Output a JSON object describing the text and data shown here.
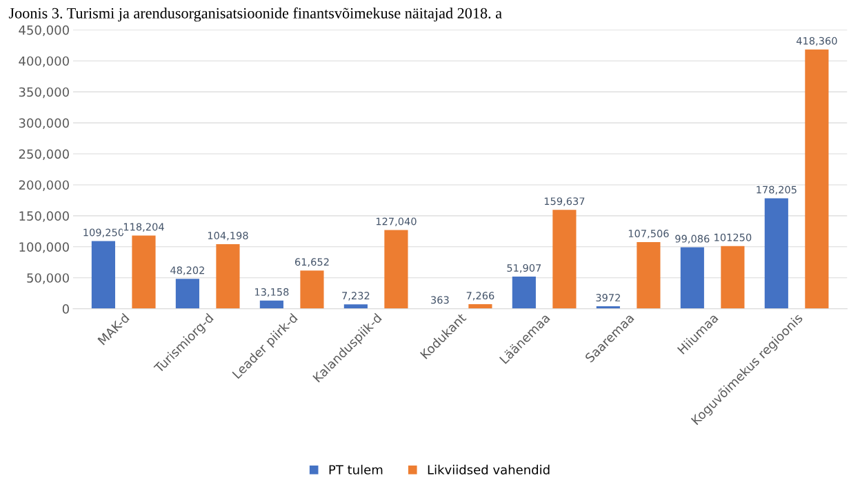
{
  "chart_data": {
    "type": "bar",
    "title": "Joonis 3. Turismi ja arendusorganisatsioonide finantsvõimekuse näitajad 2018. a",
    "categories": [
      "MAK-d",
      "Turismiorg-d",
      "Leader piirk-d",
      "Kalanduspiik-d",
      "Kodukant",
      "Läänemaa",
      "Saaremaa",
      "Hiiumaa",
      "Koguvõimekus regioonis"
    ],
    "series": [
      {
        "name": "PT tulem",
        "color": "#4472c4",
        "values": [
          109250,
          48202,
          13158,
          7232,
          363,
          51907,
          3972,
          99086,
          178205
        ],
        "value_labels": [
          "109,250",
          "48,202",
          "13,158",
          "7,232",
          "363",
          "51,907",
          "3972",
          "99,086",
          "178,205"
        ]
      },
      {
        "name": "Likviidsed vahendid",
        "color": "#ed7d31",
        "values": [
          118204,
          104198,
          61652,
          127040,
          7266,
          159637,
          107506,
          101250,
          418360
        ],
        "value_labels": [
          "118,204",
          "104,198",
          "61,652",
          "127,040",
          "7,266",
          "159,637",
          "107,506",
          "101250",
          "418,360"
        ]
      }
    ],
    "ylim": [
      0,
      450000
    ],
    "yticks": [
      {
        "value": 0,
        "label": "0"
      },
      {
        "value": 50000,
        "label": "50,000"
      },
      {
        "value": 100000,
        "label": "100,000"
      },
      {
        "value": 150000,
        "label": "150,000"
      },
      {
        "value": 200000,
        "label": "200,000"
      },
      {
        "value": 250000,
        "label": "250,000"
      },
      {
        "value": 300000,
        "label": "300,000"
      },
      {
        "value": 350000,
        "label": "350,000"
      },
      {
        "value": 400000,
        "label": "400,000"
      },
      {
        "value": 450000,
        "label": "450,000"
      }
    ],
    "grid": "y",
    "legend": "bottom"
  }
}
